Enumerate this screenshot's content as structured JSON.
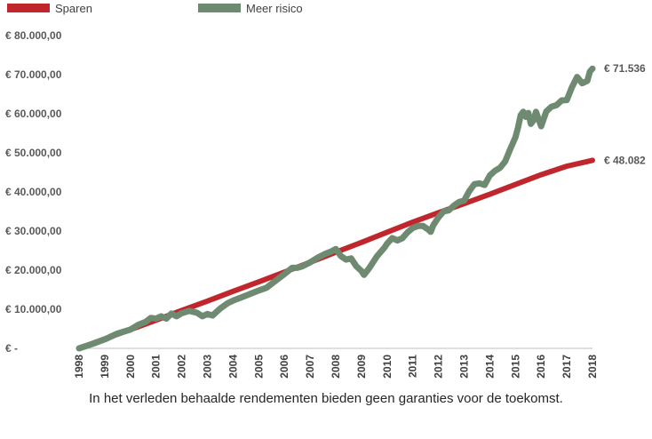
{
  "legend": [
    {
      "name": "Sparen",
      "color": "#c0272d"
    },
    {
      "name": "Meer risico",
      "color": "#6e8b71"
    }
  ],
  "footnote": "In het verleden behaalde rendementen bieden geen garanties voor de toekomst.",
  "chart_data": {
    "type": "line",
    "title": "",
    "xlabel": "",
    "ylabel": "",
    "grid": false,
    "legend_position": "top-left",
    "xlim": [
      1998,
      2018
    ],
    "ylim": [
      0,
      80000
    ],
    "x_ticks": [
      "1998",
      "1999",
      "2000",
      "2001",
      "2002",
      "2003",
      "2004",
      "2005",
      "2006",
      "2007",
      "2008",
      "2009",
      "2010",
      "2011",
      "2012",
      "2013",
      "2014",
      "2015",
      "2016",
      "2017",
      "2018"
    ],
    "y_ticks": [
      {
        "value": 0,
        "label": "€ -"
      },
      {
        "value": 10000,
        "label": "€ 10.000,00"
      },
      {
        "value": 20000,
        "label": "€ 20.000,00"
      },
      {
        "value": 30000,
        "label": "€ 30.000,00"
      },
      {
        "value": 40000,
        "label": "€ 40.000,00"
      },
      {
        "value": 50000,
        "label": "€ 50.000,00"
      },
      {
        "value": 60000,
        "label": "€ 60.000,00"
      },
      {
        "value": 70000,
        "label": "€ 70.000,00"
      },
      {
        "value": 80000,
        "label": "€ 80.000,00"
      }
    ],
    "series": [
      {
        "name": "Sparen",
        "color": "#c0272d",
        "end_label": "€ 48.082",
        "points": [
          [
            1998,
            0
          ],
          [
            1999,
            2400
          ],
          [
            2000,
            4800
          ],
          [
            2001,
            7200
          ],
          [
            2002,
            9700
          ],
          [
            2003,
            12100
          ],
          [
            2004,
            14600
          ],
          [
            2005,
            17000
          ],
          [
            2006,
            19500
          ],
          [
            2007,
            22000
          ],
          [
            2008,
            24600
          ],
          [
            2009,
            27100
          ],
          [
            2010,
            29700
          ],
          [
            2011,
            32300
          ],
          [
            2012,
            34700
          ],
          [
            2013,
            37000
          ],
          [
            2014,
            39400
          ],
          [
            2015,
            41900
          ],
          [
            2016,
            44400
          ],
          [
            2017,
            46600
          ],
          [
            2018,
            48082
          ]
        ]
      },
      {
        "name": "Meer risico",
        "color": "#6e8b71",
        "end_label": "€ 71.536",
        "points": [
          [
            1998,
            0
          ],
          [
            1998.5,
            1100
          ],
          [
            1999,
            2300
          ],
          [
            1999.5,
            3800
          ],
          [
            2000,
            4800
          ],
          [
            2000.3,
            6000
          ],
          [
            2000.6,
            6800
          ],
          [
            2000.8,
            7800
          ],
          [
            2001,
            7600
          ],
          [
            2001.2,
            8200
          ],
          [
            2001.4,
            7600
          ],
          [
            2001.6,
            8900
          ],
          [
            2001.8,
            8200
          ],
          [
            2002,
            9000
          ],
          [
            2002.3,
            9600
          ],
          [
            2002.6,
            9100
          ],
          [
            2002.8,
            8200
          ],
          [
            2003,
            8800
          ],
          [
            2003.2,
            8400
          ],
          [
            2003.5,
            10200
          ],
          [
            2003.8,
            11600
          ],
          [
            2004,
            12200
          ],
          [
            2004.5,
            13500
          ],
          [
            2005,
            14800
          ],
          [
            2005.3,
            15500
          ],
          [
            2005.6,
            17000
          ],
          [
            2006,
            19000
          ],
          [
            2006.3,
            20600
          ],
          [
            2006.5,
            20600
          ],
          [
            2006.7,
            21000
          ],
          [
            2007,
            22000
          ],
          [
            2007.3,
            23200
          ],
          [
            2007.6,
            24200
          ],
          [
            2007.8,
            24700
          ],
          [
            2008,
            25400
          ],
          [
            2008.2,
            23600
          ],
          [
            2008.4,
            22700
          ],
          [
            2008.6,
            23000
          ],
          [
            2008.8,
            21000
          ],
          [
            2009,
            19800
          ],
          [
            2009.1,
            18800
          ],
          [
            2009.3,
            20500
          ],
          [
            2009.6,
            23500
          ],
          [
            2009.9,
            25800
          ],
          [
            2010,
            26800
          ],
          [
            2010.2,
            28200
          ],
          [
            2010.4,
            27600
          ],
          [
            2010.6,
            28200
          ],
          [
            2010.8,
            29700
          ],
          [
            2011,
            30800
          ],
          [
            2011.2,
            31300
          ],
          [
            2011.4,
            31300
          ],
          [
            2011.6,
            30400
          ],
          [
            2011.7,
            29800
          ],
          [
            2011.8,
            31500
          ],
          [
            2012,
            33500
          ],
          [
            2012.2,
            35000
          ],
          [
            2012.4,
            35300
          ],
          [
            2012.6,
            36500
          ],
          [
            2012.8,
            37400
          ],
          [
            2013,
            37800
          ],
          [
            2013.2,
            40200
          ],
          [
            2013.4,
            42000
          ],
          [
            2013.6,
            42200
          ],
          [
            2013.8,
            41800
          ],
          [
            2014,
            44200
          ],
          [
            2014.2,
            45400
          ],
          [
            2014.4,
            46200
          ],
          [
            2014.6,
            47800
          ],
          [
            2014.8,
            51000
          ],
          [
            2015,
            54000
          ],
          [
            2015.1,
            56500
          ],
          [
            2015.2,
            59600
          ],
          [
            2015.3,
            60500
          ],
          [
            2015.4,
            59200
          ],
          [
            2015.5,
            60200
          ],
          [
            2015.6,
            57400
          ],
          [
            2015.7,
            58300
          ],
          [
            2015.8,
            60500
          ],
          [
            2016,
            56800
          ],
          [
            2016.2,
            60600
          ],
          [
            2016.4,
            61800
          ],
          [
            2016.6,
            62200
          ],
          [
            2016.8,
            63400
          ],
          [
            2017,
            63500
          ],
          [
            2017.2,
            66800
          ],
          [
            2017.4,
            69400
          ],
          [
            2017.6,
            67800
          ],
          [
            2017.8,
            68400
          ],
          [
            2017.9,
            70800
          ],
          [
            2018,
            71536
          ]
        ]
      }
    ]
  }
}
